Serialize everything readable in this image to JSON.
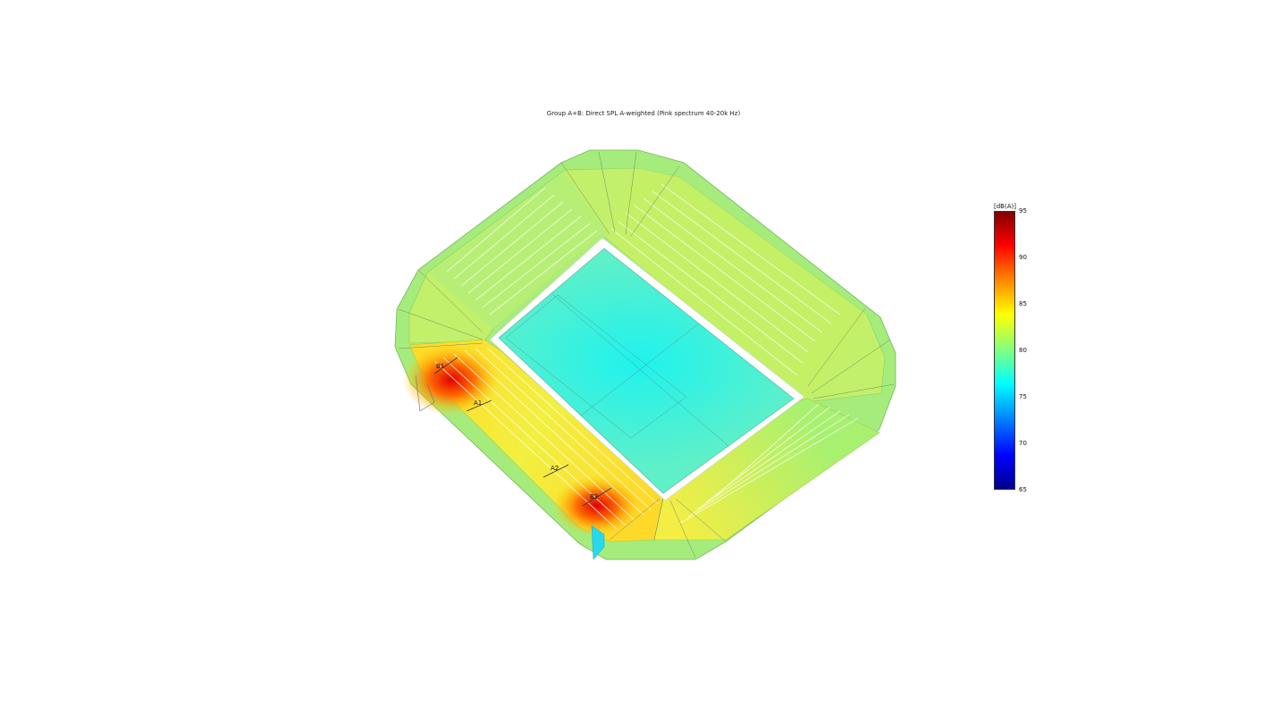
{
  "title": "Group A+B: Direct SPL A-weighted (Pink spectrum 40-20k Hz)",
  "colorbar": {
    "unit": "[dB(A)]",
    "min": 65,
    "max": 95,
    "ticks": [
      "95",
      "90",
      "85",
      "80",
      "75",
      "70",
      "65"
    ],
    "colormap": [
      "#800000",
      "#ff0000",
      "#ff8000",
      "#ffff00",
      "#80ff80",
      "#00ffff",
      "#0080ff",
      "#0000ff",
      "#00008f"
    ]
  },
  "speakers": [
    {
      "id": "b1",
      "label": "B1",
      "level_dba": 92
    },
    {
      "id": "a1",
      "label": "A1",
      "level_dba": 88
    },
    {
      "id": "a2",
      "label": "A2",
      "level_dba": 86
    },
    {
      "id": "b2",
      "label": "B2",
      "level_dba": 92
    }
  ],
  "zones": {
    "pitch_level_dba": 76,
    "upper_stands_level_dba": 81,
    "rim_level_dba": 81
  }
}
